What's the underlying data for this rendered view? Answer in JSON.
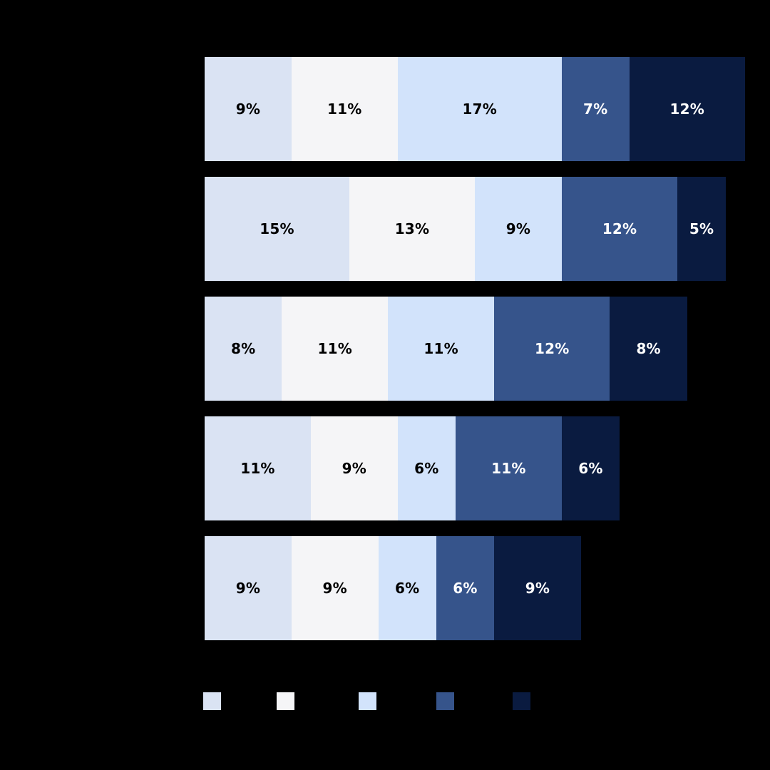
{
  "background_color": "#000000",
  "chart_data": {
    "type": "bar",
    "orientation": "horizontal",
    "stacked": true,
    "unit": "%",
    "title": "",
    "xlabel": "",
    "ylabel": "",
    "grid": false,
    "axis_visible": false,
    "series_colors": [
      "#dae3f3",
      "#f5f5f7",
      "#d2e3fb",
      "#36548b",
      "#0a1b40"
    ],
    "segment_label_colors": [
      "#000000",
      "#000000",
      "#000000",
      "#ffffff",
      "#ffffff"
    ],
    "rows": [
      {
        "values": [
          9,
          11,
          17,
          7,
          12
        ],
        "labels": [
          "9%",
          "11%",
          "17%",
          "7%",
          "12%"
        ],
        "total": 56
      },
      {
        "values": [
          15,
          13,
          9,
          12,
          5
        ],
        "labels": [
          "15%",
          "13%",
          "9%",
          "12%",
          "5%"
        ],
        "total": 54
      },
      {
        "values": [
          8,
          11,
          11,
          12,
          8
        ],
        "labels": [
          "8%",
          "11%",
          "11%",
          "12%",
          "8%"
        ],
        "total": 50
      },
      {
        "values": [
          11,
          9,
          6,
          11,
          6
        ],
        "labels": [
          "11%",
          "9%",
          "6%",
          "11%",
          "6%"
        ],
        "total": 43
      },
      {
        "values": [
          9,
          9,
          6,
          6,
          9
        ],
        "labels": [
          "9%",
          "9%",
          "6%",
          "6%",
          "9%"
        ],
        "total": 39
      }
    ],
    "xlim": [
      0,
      56
    ]
  },
  "legend": {
    "position": "bottom",
    "swatch_colors": [
      "#dae3f3",
      "#f5f5f7",
      "#d2e3fb",
      "#36548b",
      "#0a1b40"
    ]
  }
}
